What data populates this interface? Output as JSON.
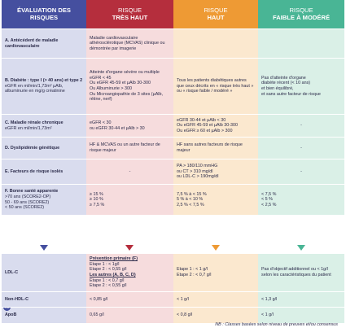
{
  "header": {
    "eval_line1": "ÉVALUATION DES",
    "eval_line2": "RISQUES",
    "tres_haut_top": "RISQUE",
    "tres_haut_sub": "TRÈS HAUT",
    "haut_top": "RISQUE",
    "haut_sub": "HAUT",
    "faible_top": "RISQUE",
    "faible_sub": "FAIBLE À MODÉRÉ"
  },
  "rows": [
    {
      "label": "A. Antécédent de maladie cardiovasculaire",
      "note": "",
      "tres_haut": "Maladie cardiovasculaire athérosclérotique (MCVAS) clinique ou démontrée par imagerie",
      "haut": "",
      "faible": ""
    },
    {
      "label": "B. Diabète : type I (> 40 ans) et type 2",
      "note": "eGFR en ml/min/1,73m² µAlb, albuminurie en mg/g créatinine",
      "tres_haut": "Atteinte d'organe sévère ou multiple\n  eGFR < 45\n  Ou eGFR 45-59 et µAlb 30-300\n  Ou Albuminurie > 300\n  Ou Microangiopathie de 3 sites (µAlb, rétine, nerf)",
      "haut": "Tous les patients diabétiques autres que ceux décrits en « risque très haut » ou « risque faible / modéré »",
      "faible": "Pas d'atteinte d'organe\n  diabète récent (< 10 ans)\n  et bien équilibré,\n  et sans autre facteur de risque"
    },
    {
      "label": "C. Maladie rénale chronique",
      "note": "eGFR en ml/min/1,73m²",
      "tres_haut": "eGFR < 30\nou eGFR 30-44 et µAlb > 30",
      "haut": "eGFR 30-44 et µAlb < 30\nOu eGFR 45-59 et µAlb 30-300\nOu eGFR ≥ 60 et µAlb > 300",
      "faible": "-"
    },
    {
      "label": "D. Dyslipidémie génétique",
      "note": "",
      "tres_haut": "HF & MCVAS ou un autre facteur de risque majeur",
      "haut": "HF sans autres facteurs de risque majeur",
      "faible": "-"
    },
    {
      "label": "E. Facteurs de risque isolés",
      "note": "",
      "tres_haut": "-",
      "haut": "PA > 180/110 mmHG\nou CT > 310 mg/dl\nou LDL-C > 190mg/dl",
      "faible": "-"
    },
    {
      "label": "F. Bonne santé apparente",
      "note": ">70 ans (SCORE2-OP)\n50 - 69 ans (SCORE2)\n< 50 ans (SCORE2)",
      "tres_haut": "≥ 15 %\n≥ 10 %\n≥ 7,5 %",
      "haut": "7,5 % à < 15 %\n5 % à < 10 %\n2,5 % < 7,5 %",
      "faible": "< 7,5 %\n< 5 %\n< 2,5 %"
    }
  ],
  "targets": {
    "ldl": {
      "label": "LDL-C",
      "tres_haut_title1": "Prévention primaire (F)",
      "tres_haut_p1": "Etape 1 : < 1g/l\nEtape 2 : < 0,55 g/l",
      "tres_haut_title2": "Les autres (A, B, C, D)",
      "tres_haut_p2": "Etape 1 : < 0,7 g/l\nEtape 2 : < 0,55 g/l",
      "haut": "Etape 1 : < 1 g/l\nEtape 2 : < 0,7 g/l",
      "faible": "Pas d'objectif additionnel ou < 1g/l\nselon les caractéristiques du patient"
    },
    "nonhdl": {
      "label": "Non-HDL-C",
      "tres_haut": "< 0,85 g/l",
      "haut": "< 1 g/l",
      "faible": "< 1,3 g/l"
    },
    "apob": {
      "label": "ApoB",
      "badge": "OU",
      "tres_haut": "0,65 g/l",
      "haut": "< 0,8 g/l",
      "faible": "< 1 g/l"
    }
  },
  "footnote": "NB : Classes basées selon niveau de preuves et/ou consensus",
  "colors": {
    "eval": "#454f9f",
    "tres_haut": "#b52e3d",
    "haut": "#ee9a34",
    "faible": "#49b595"
  }
}
